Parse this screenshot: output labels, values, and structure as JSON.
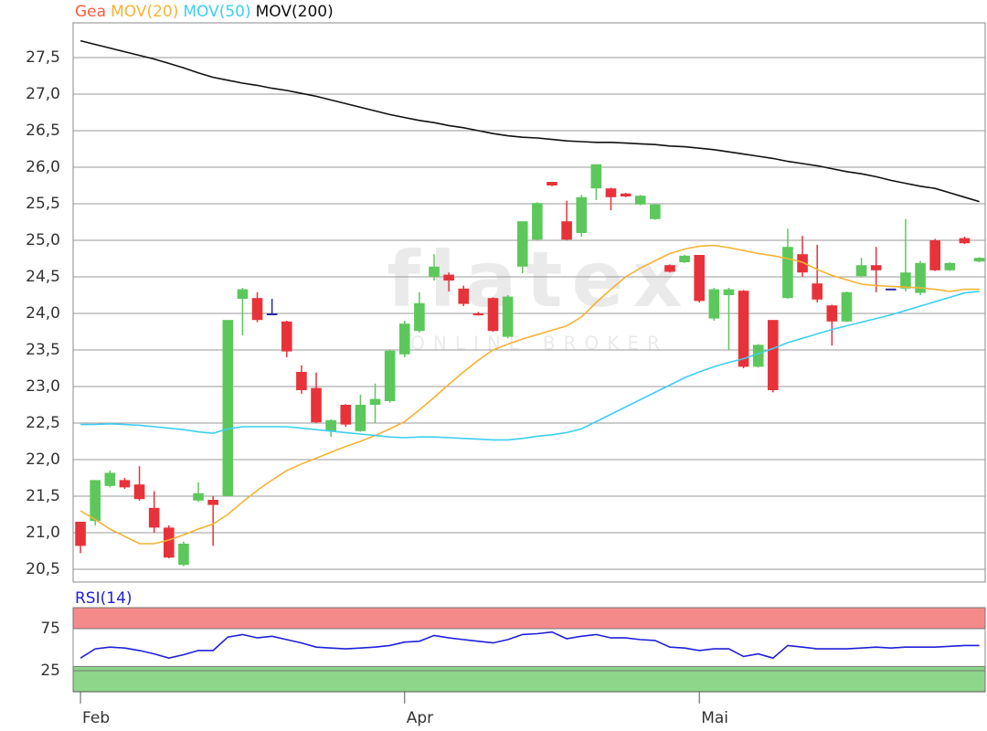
{
  "chart_data": [
    {
      "type": "candlestick",
      "name": "Gea",
      "name_color": "#ff5a3c",
      "watermark": "flatex",
      "watermark_tagline": "ONLINE BROKER",
      "up_color": "#5cc85c",
      "down_color": "#e8323a",
      "doji_color": "#2a2aa0",
      "x": [
        0,
        1,
        2,
        3,
        4,
        5,
        6,
        7,
        8,
        9,
        10,
        11,
        12,
        13,
        14,
        15,
        16,
        17,
        18,
        19,
        20,
        21,
        22,
        23,
        24,
        25,
        26,
        27,
        28,
        29,
        30,
        31,
        32,
        33,
        34,
        35,
        36,
        37,
        38,
        39,
        40,
        41,
        42,
        43,
        44,
        45,
        46,
        47,
        48,
        49,
        50,
        51,
        52,
        53,
        54,
        55,
        56,
        57,
        58,
        59,
        60,
        61
      ],
      "open": [
        21.15,
        21.16,
        21.64,
        21.72,
        21.66,
        21.34,
        21.07,
        20.56,
        21.44,
        21.45,
        21.5,
        24.2,
        24.21,
        24.0,
        23.89,
        23.2,
        22.98,
        22.39,
        22.75,
        22.39,
        22.75,
        22.8,
        23.44,
        23.76,
        24.5,
        24.53,
        24.34,
        24.0,
        24.21,
        23.68,
        24.64,
        25.01,
        25.8,
        25.26,
        25.1,
        25.71,
        25.71,
        25.64,
        25.49,
        25.29,
        24.66,
        24.7,
        24.8,
        23.93,
        24.25,
        24.31,
        23.27,
        23.91,
        24.21,
        24.81,
        24.41,
        24.11,
        23.89,
        24.51,
        24.66,
        24.34,
        24.34,
        24.28,
        25.0,
        24.59,
        25.03,
        24.71
      ],
      "high": [
        21.15,
        21.72,
        21.85,
        21.75,
        21.91,
        21.57,
        21.1,
        20.88,
        21.69,
        21.5,
        23.91,
        24.35,
        24.29,
        24.2,
        23.9,
        23.29,
        23.19,
        22.55,
        22.76,
        22.89,
        23.04,
        23.5,
        23.9,
        24.29,
        24.81,
        24.56,
        24.38,
        24.02,
        24.22,
        24.25,
        25.26,
        25.52,
        25.8,
        25.54,
        25.62,
        26.04,
        25.72,
        25.65,
        25.62,
        25.5,
        24.67,
        24.8,
        24.8,
        24.35,
        24.35,
        24.32,
        23.58,
        23.91,
        25.16,
        25.06,
        24.94,
        24.12,
        24.3,
        24.76,
        24.91,
        24.34,
        25.29,
        24.72,
        25.02,
        24.7,
        25.05,
        24.77
      ],
      "low": [
        20.72,
        21.1,
        21.62,
        21.6,
        21.44,
        21.0,
        20.65,
        20.54,
        21.42,
        20.82,
        21.5,
        23.7,
        23.88,
        24.0,
        23.4,
        22.9,
        22.5,
        22.31,
        22.45,
        22.38,
        22.5,
        22.78,
        23.4,
        23.74,
        24.45,
        24.3,
        24.1,
        23.97,
        23.75,
        23.66,
        24.55,
        25.0,
        25.74,
        25.0,
        25.05,
        25.55,
        25.41,
        25.59,
        25.48,
        25.28,
        24.56,
        24.69,
        24.15,
        23.9,
        23.5,
        23.25,
        23.26,
        22.92,
        24.2,
        24.5,
        24.15,
        23.56,
        23.88,
        24.5,
        24.29,
        24.34,
        24.3,
        24.25,
        24.58,
        24.58,
        24.95,
        24.7
      ],
      "close": [
        20.82,
        21.72,
        21.82,
        21.62,
        21.46,
        21.07,
        20.66,
        20.85,
        21.54,
        21.38,
        23.91,
        24.33,
        23.91,
        24.0,
        23.48,
        22.95,
        22.51,
        22.54,
        22.48,
        22.75,
        22.83,
        23.49,
        23.86,
        24.14,
        24.64,
        24.45,
        24.13,
        23.98,
        23.76,
        24.23,
        25.26,
        25.51,
        25.75,
        25.01,
        25.59,
        26.04,
        25.59,
        25.6,
        25.61,
        25.49,
        24.57,
        24.79,
        24.17,
        24.33,
        24.33,
        23.27,
        23.57,
        22.95,
        24.91,
        24.56,
        24.19,
        23.89,
        24.29,
        24.66,
        24.59,
        24.34,
        24.56,
        24.69,
        24.59,
        24.69,
        24.96,
        24.76
      ],
      "series": [
        {
          "name": "MOV(20)",
          "color": "#f5b335",
          "values": [
            21.3,
            21.18,
            21.05,
            20.95,
            20.85,
            20.85,
            20.9,
            20.97,
            21.05,
            21.12,
            21.25,
            21.42,
            21.58,
            21.72,
            21.85,
            21.94,
            22.02,
            22.1,
            22.18,
            22.25,
            22.33,
            22.42,
            22.52,
            22.68,
            22.85,
            23.03,
            23.2,
            23.36,
            23.5,
            23.58,
            23.65,
            23.71,
            23.77,
            23.83,
            23.95,
            24.15,
            24.33,
            24.5,
            24.62,
            24.72,
            24.82,
            24.88,
            24.92,
            24.93,
            24.9,
            24.86,
            24.82,
            24.79,
            24.75,
            24.7,
            24.6,
            24.52,
            24.46,
            24.4,
            24.38,
            24.37,
            24.36,
            24.35,
            24.33,
            24.3,
            24.33,
            24.33
          ]
        },
        {
          "name": "MOV(50)",
          "color": "#3ccff0",
          "values": [
            22.48,
            22.48,
            22.49,
            22.48,
            22.47,
            22.45,
            22.43,
            22.41,
            22.38,
            22.36,
            22.42,
            22.45,
            22.45,
            22.45,
            22.45,
            22.43,
            22.41,
            22.39,
            22.37,
            22.35,
            22.33,
            22.31,
            22.3,
            22.31,
            22.31,
            22.3,
            22.29,
            22.28,
            22.27,
            22.27,
            22.29,
            22.32,
            22.34,
            22.37,
            22.42,
            22.52,
            22.62,
            22.72,
            22.82,
            22.92,
            23.02,
            23.12,
            23.2,
            23.27,
            23.33,
            23.38,
            23.45,
            23.52,
            23.6,
            23.66,
            23.72,
            23.78,
            23.83,
            23.88,
            23.93,
            23.98,
            24.04,
            24.1,
            24.16,
            24.22,
            24.28,
            24.3
          ]
        },
        {
          "name": "MOV(200)",
          "color": "#111111",
          "values": [
            27.73,
            27.68,
            27.63,
            27.58,
            27.53,
            27.48,
            27.42,
            27.36,
            27.29,
            27.23,
            27.19,
            27.15,
            27.12,
            27.08,
            27.05,
            27.01,
            26.97,
            26.92,
            26.87,
            26.82,
            26.77,
            26.72,
            26.68,
            26.64,
            26.61,
            26.57,
            26.54,
            26.5,
            26.46,
            26.43,
            26.41,
            26.4,
            26.38,
            26.36,
            26.35,
            26.34,
            26.34,
            26.33,
            26.32,
            26.31,
            26.29,
            26.28,
            26.26,
            26.24,
            26.21,
            26.18,
            26.15,
            26.12,
            26.08,
            26.05,
            26.02,
            25.98,
            25.94,
            25.91,
            25.87,
            25.82,
            25.78,
            25.74,
            25.71,
            25.65,
            25.59,
            25.53
          ]
        }
      ],
      "xlim": [
        -0.5,
        61.4
      ],
      "ylim": [
        20.325,
        27.975
      ],
      "yticks": [
        {
          "value": 20.5,
          "label": "20,5"
        },
        {
          "value": 21,
          "label": "21,0"
        },
        {
          "value": 21.5,
          "label": "21,5"
        },
        {
          "value": 22,
          "label": "22,0"
        },
        {
          "value": 22.5,
          "label": "22,5"
        },
        {
          "value": 23,
          "label": "23,0"
        },
        {
          "value": 23.5,
          "label": "23,5"
        },
        {
          "value": 24,
          "label": "24,0"
        },
        {
          "value": 24.5,
          "label": "24,5"
        },
        {
          "value": 25,
          "label": "25,0"
        },
        {
          "value": 25.5,
          "label": "25,5"
        },
        {
          "value": 26,
          "label": "26,0"
        },
        {
          "value": 26.5,
          "label": "26,5"
        },
        {
          "value": 27,
          "label": "27,0"
        },
        {
          "value": 27.5,
          "label": "27,5"
        }
      ],
      "grid": true
    },
    {
      "type": "line",
      "series": [
        {
          "name": "RSI(14)",
          "color": "#1f1fd8",
          "values": [
            40,
            51,
            53,
            52,
            49,
            45,
            40,
            44,
            49,
            49,
            65,
            68,
            64,
            66,
            62,
            58,
            53,
            52,
            51,
            52,
            53,
            55,
            59,
            60,
            67,
            64,
            62,
            60,
            58,
            62,
            68,
            69,
            71,
            63,
            66,
            68,
            64,
            64,
            62,
            61,
            53,
            52,
            49,
            51,
            51,
            42,
            45,
            40,
            55,
            53,
            51,
            51,
            51,
            52,
            53,
            52,
            53,
            53,
            53,
            54,
            55,
            55
          ]
        }
      ],
      "bands": [
        {
          "range": [
            75,
            100
          ],
          "color": "#f58a8a"
        },
        {
          "range": [
            0,
            30
          ],
          "color": "#8ed68a"
        }
      ],
      "xlim": [
        -0.5,
        61.4
      ],
      "ylim": [
        0,
        100
      ],
      "yticks": [
        25,
        75
      ],
      "xticks": [
        {
          "value": 0,
          "label": "Feb"
        },
        {
          "value": 22,
          "label": "Apr"
        },
        {
          "value": 42,
          "label": "Mai"
        }
      ],
      "grid": true
    }
  ]
}
